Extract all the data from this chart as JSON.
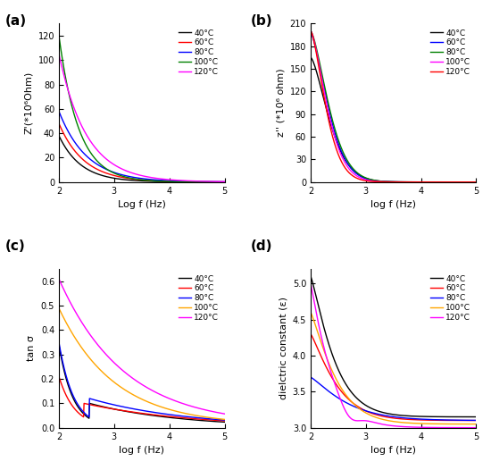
{
  "panel_labels": [
    "(a)",
    "(b)",
    "(c)",
    "(d)"
  ],
  "colors_a": [
    "black",
    "red",
    "blue",
    "green",
    "magenta"
  ],
  "colors_b": [
    "black",
    "blue",
    "green",
    "magenta",
    "red"
  ],
  "colors_c": [
    "black",
    "red",
    "blue",
    "orange",
    "magenta"
  ],
  "colors_d": [
    "black",
    "red",
    "blue",
    "orange",
    "magenta"
  ],
  "legend_temps_abcd": [
    "40°C",
    "60°C",
    "80°C",
    "100°C",
    "120°C"
  ],
  "xlabel_a": "Log f (Hz)",
  "ylabel_a": "Z'(*10⁶Ohm)",
  "xlabel_b": "log f (Hz)",
  "ylabel_b": "z'' (*10⁶ ohm)",
  "xlabel_c": "log f (Hz)",
  "ylabel_c": "tan σ",
  "xlabel_d": "log f (Hz)",
  "ylabel_d": "dielctric constant (ε)",
  "xlim": [
    2,
    5
  ],
  "ylim_a": [
    0,
    130
  ],
  "ylim_b": [
    0,
    210
  ],
  "ylim_c": [
    0,
    0.65
  ],
  "ylim_d": [
    3.0,
    5.2
  ]
}
